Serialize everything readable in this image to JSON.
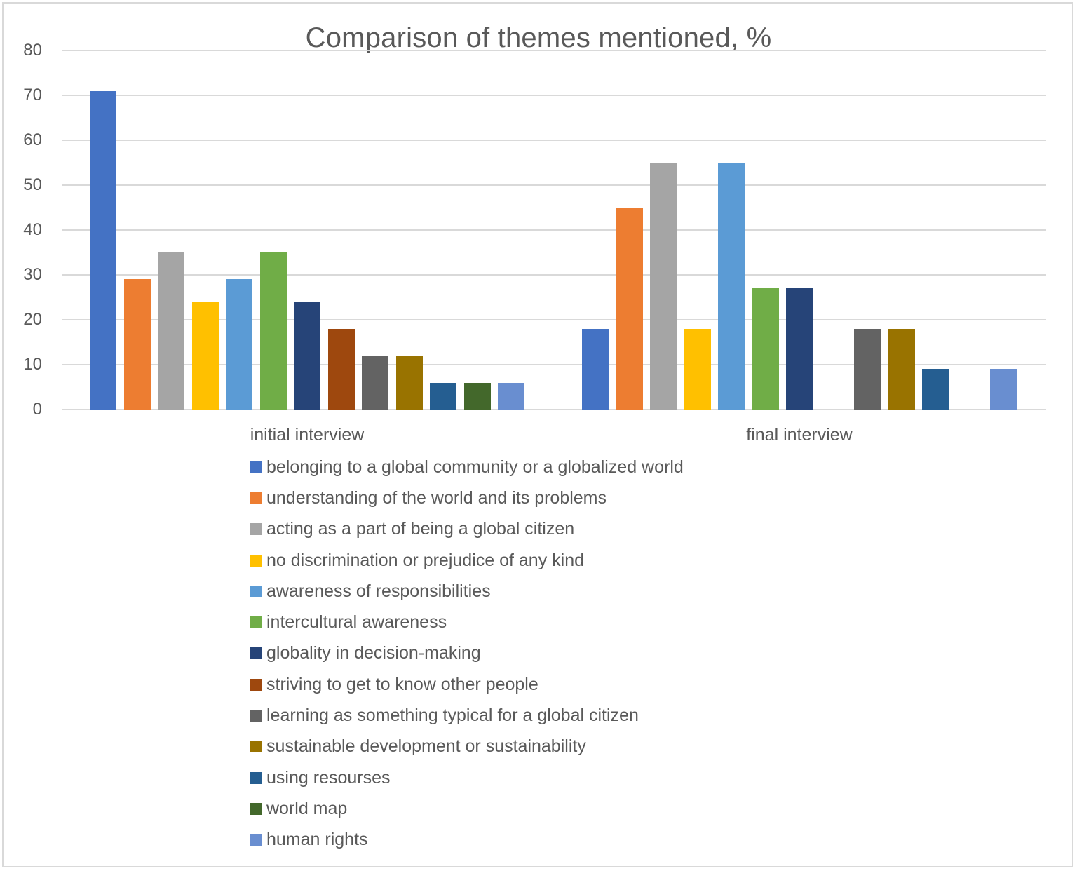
{
  "chart_data": {
    "type": "bar",
    "title": "Comparison of themes mentioned, %",
    "xlabel": "",
    "ylabel": "",
    "ylim": [
      0,
      80
    ],
    "yticks": [
      0,
      10,
      20,
      30,
      40,
      50,
      60,
      70,
      80
    ],
    "grid": true,
    "legend_position": "bottom",
    "categories": [
      "initial interview",
      "final interview"
    ],
    "series": [
      {
        "name": "belonging to a global community or a globalized world",
        "color": "#4472C4",
        "values": [
          71,
          18
        ]
      },
      {
        "name": "understanding of the world and its problems",
        "color": "#ED7D31",
        "values": [
          29,
          45
        ]
      },
      {
        "name": "acting as a part of being a global citizen",
        "color": "#A5A5A5",
        "values": [
          35,
          55
        ]
      },
      {
        "name": "no discrimination or prejudice of any kind",
        "color": "#FFC000",
        "values": [
          24,
          18
        ]
      },
      {
        "name": "awareness of responsibilities",
        "color": "#5B9BD5",
        "values": [
          29,
          55
        ]
      },
      {
        "name": "intercultural awareness",
        "color": "#70AD47",
        "values": [
          35,
          27
        ]
      },
      {
        "name": "globality in decision-making",
        "color": "#264478",
        "values": [
          24,
          27
        ]
      },
      {
        "name": "striving to get to know other people",
        "color": "#9E480E",
        "values": [
          18,
          0
        ]
      },
      {
        "name": "learning as something typical for a global citizen",
        "color": "#636363",
        "values": [
          12,
          18
        ]
      },
      {
        "name": "sustainable development or sustainability",
        "color": "#997300",
        "values": [
          12,
          18
        ]
      },
      {
        "name": "using resourses",
        "color": "#255E91",
        "values": [
          6,
          9
        ]
      },
      {
        "name": "world map",
        "color": "#43682B",
        "values": [
          6,
          0
        ]
      },
      {
        "name": "human rights",
        "color": "#698ED0",
        "values": [
          6,
          9
        ]
      }
    ]
  },
  "title": "Comparison of themes mentioned, %",
  "yticks": [
    "80",
    "70",
    "60",
    "50",
    "40",
    "30",
    "20",
    "10",
    "0"
  ],
  "categories": [
    "initial interview",
    "final interview"
  ],
  "legend": [
    "belonging to a global community or a globalized world",
    "understanding of the world and its problems",
    "acting as a part of being a global citizen",
    "no discrimination or prejudice of any kind",
    "awareness of responsibilities",
    "intercultural awareness",
    "globality in decision-making",
    "striving to get to know other people",
    "learning as something typical for a global citizen",
    "sustainable development or sustainability",
    "using resourses",
    "world map",
    "human rights"
  ]
}
